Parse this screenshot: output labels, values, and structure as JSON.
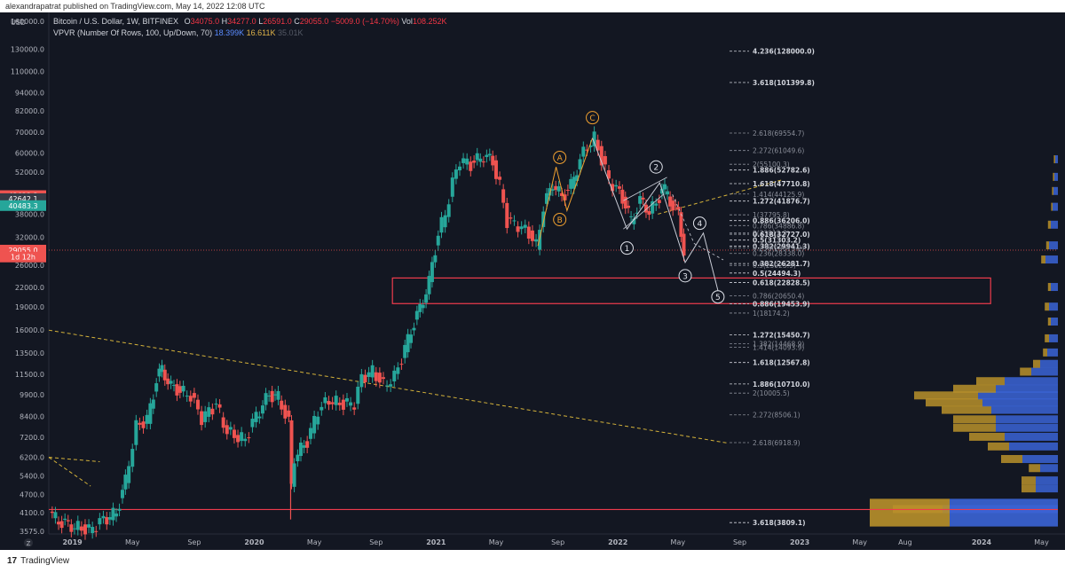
{
  "topbar": {
    "text": "alexandrapatrat published on TradingView.com, May 14, 2022 12:08 UTC"
  },
  "legend": {
    "symbol": "Bitcoin / U.S. Dollar, 1W, BITFINEX",
    "o_label": "O",
    "o": "34075.0",
    "h_label": "H",
    "h": "34277.0",
    "l_label": "L",
    "l": "26591.0",
    "c_label": "C",
    "c": "29055.0",
    "change": "−5009.0 (−14.70%)",
    "vol_label": "Vol",
    "vol": "108.252K",
    "indicator": "VPVR (Number Of Rows, 100, Up/Down, 70)",
    "ind_v1": "18.399K",
    "ind_v2": "16.611K",
    "ind_v3": "35.01K"
  },
  "footer": {
    "logo_text": "TradingView"
  },
  "axis": {
    "usd_label": "USD",
    "z_label": "Z"
  },
  "colors": {
    "bg": "#131722",
    "up": "#26a69a",
    "down": "#ef5350",
    "fib": "#d1d4dc",
    "fib_dim": "#8a8e99",
    "wave_orange": "#f0a030",
    "trend_yellow": "#d4b23a",
    "box": "#ef3b4c",
    "vp_up": "#3b64d6",
    "vp_down": "#b9902a"
  },
  "chart_data": {
    "type": "candlestick",
    "title": "Bitcoin / U.S. Dollar, 1W, BITFINEX",
    "y_scale": "log",
    "ylim": [
      3500,
      160000
    ],
    "y_ticks": [
      {
        "label": "160000.0",
        "v": 160000
      },
      {
        "label": "130000.0",
        "v": 130000
      },
      {
        "label": "110000.0",
        "v": 110000
      },
      {
        "label": "94000.0",
        "v": 94000
      },
      {
        "label": "82000.0",
        "v": 82000
      },
      {
        "label": "70000.0",
        "v": 70000
      },
      {
        "label": "60000.0",
        "v": 60000
      },
      {
        "label": "52000.0",
        "v": 52000
      },
      {
        "label": "38000.0",
        "v": 38000
      },
      {
        "label": "32000.0",
        "v": 32000
      },
      {
        "label": "26000.0",
        "v": 26000
      },
      {
        "label": "22000.0",
        "v": 22000
      },
      {
        "label": "19000.0",
        "v": 19000
      },
      {
        "label": "16000.0",
        "v": 16000
      },
      {
        "label": "13500.0",
        "v": 13500
      },
      {
        "label": "11500.0",
        "v": 11500
      },
      {
        "label": "9900.0",
        "v": 9900
      },
      {
        "label": "8400.0",
        "v": 8400
      },
      {
        "label": "7200.0",
        "v": 7200
      },
      {
        "label": "6200.0",
        "v": 6200
      },
      {
        "label": "5400.0",
        "v": 5400
      },
      {
        "label": "4700.0",
        "v": 4700
      },
      {
        "label": "4100.0",
        "v": 4100
      },
      {
        "label": "3575.0",
        "v": 3575
      }
    ],
    "price_badges": [
      {
        "label": "43623.3",
        "v": 43623,
        "color": "#ef5350"
      },
      {
        "label": "42642.1",
        "v": 42642,
        "color": "#363a45"
      },
      {
        "label": "40483.3",
        "v": 40483,
        "color": "#26a69a"
      },
      {
        "label": "29055.0",
        "v": 29055,
        "color": "#ef5350"
      },
      {
        "label": "1d 12h",
        "v": 27600,
        "color": "#ef5350"
      }
    ],
    "x_ticks": [
      {
        "label": "2019",
        "t": 2019.0,
        "bold": true
      },
      {
        "label": "May",
        "t": 2019.33
      },
      {
        "label": "Sep",
        "t": 2019.67
      },
      {
        "label": "2020",
        "t": 2020.0,
        "bold": true
      },
      {
        "label": "May",
        "t": 2020.33
      },
      {
        "label": "Sep",
        "t": 2020.67
      },
      {
        "label": "2021",
        "t": 2021.0,
        "bold": true
      },
      {
        "label": "May",
        "t": 2021.33
      },
      {
        "label": "Sep",
        "t": 2021.67
      },
      {
        "label": "2022",
        "t": 2022.0,
        "bold": true
      },
      {
        "label": "May",
        "t": 2022.33
      },
      {
        "label": "Sep",
        "t": 2022.67
      },
      {
        "label": "2023",
        "t": 2023.0,
        "bold": true
      },
      {
        "label": "May",
        "t": 2023.33
      },
      {
        "label": "Aug",
        "t": 2023.58
      },
      {
        "label": "2024",
        "t": 2024.0,
        "bold": true
      },
      {
        "label": "May",
        "t": 2024.33
      }
    ],
    "price_path": [
      [
        2018.88,
        4100
      ],
      [
        2018.95,
        3800
      ],
      [
        2019.02,
        3700
      ],
      [
        2019.1,
        3600
      ],
      [
        2019.18,
        3900
      ],
      [
        2019.25,
        4100
      ],
      [
        2019.3,
        5200
      ],
      [
        2019.36,
        7800
      ],
      [
        2019.42,
        8200
      ],
      [
        2019.47,
        11000
      ],
      [
        2019.5,
        12000
      ],
      [
        2019.55,
        10500
      ],
      [
        2019.6,
        10200
      ],
      [
        2019.66,
        9800
      ],
      [
        2019.72,
        8300
      ],
      [
        2019.8,
        9200
      ],
      [
        2019.86,
        7500
      ],
      [
        2019.92,
        7200
      ],
      [
        2019.96,
        7100
      ],
      [
        2020.02,
        8500
      ],
      [
        2020.09,
        9900
      ],
      [
        2020.14,
        9700
      ],
      [
        2020.2,
        8000
      ],
      [
        2020.21,
        5000
      ],
      [
        2020.23,
        6200
      ],
      [
        2020.3,
        7000
      ],
      [
        2020.36,
        8800
      ],
      [
        2020.42,
        9500
      ],
      [
        2020.5,
        9200
      ],
      [
        2020.56,
        9300
      ],
      [
        2020.6,
        11200
      ],
      [
        2020.66,
        11800
      ],
      [
        2020.72,
        10600
      ],
      [
        2020.78,
        11300
      ],
      [
        2020.82,
        13000
      ],
      [
        2020.87,
        16000
      ],
      [
        2020.92,
        18800
      ],
      [
        2020.97,
        23000
      ],
      [
        2021.02,
        33000
      ],
      [
        2021.06,
        38000
      ],
      [
        2021.1,
        48000
      ],
      [
        2021.14,
        57000
      ],
      [
        2021.2,
        55000
      ],
      [
        2021.27,
        59000
      ],
      [
        2021.32,
        56000
      ],
      [
        2021.36,
        47000
      ],
      [
        2021.4,
        36000
      ],
      [
        2021.46,
        35000
      ],
      [
        2021.52,
        33000
      ],
      [
        2021.56,
        30000
      ],
      [
        2021.6,
        40000
      ],
      [
        2021.65,
        48000
      ],
      [
        2021.7,
        43000
      ],
      [
        2021.75,
        47000
      ],
      [
        2021.8,
        57000
      ],
      [
        2021.84,
        63000
      ],
      [
        2021.88,
        67000
      ],
      [
        2021.92,
        57000
      ],
      [
        2021.96,
        49000
      ],
      [
        2022.0,
        46000
      ],
      [
        2022.05,
        41000
      ],
      [
        2022.08,
        36000
      ],
      [
        2022.13,
        42000
      ],
      [
        2022.18,
        39000
      ],
      [
        2022.22,
        41000
      ],
      [
        2022.25,
        46000
      ],
      [
        2022.28,
        44500
      ],
      [
        2022.31,
        40000
      ],
      [
        2022.34,
        38000
      ],
      [
        2022.37,
        29055
      ]
    ],
    "horizontal_line": {
      "v": 4200,
      "color": "#ef3b4c"
    },
    "support_box": {
      "v_top": 23600,
      "v_bottom": 19500,
      "t_start": 2020.76,
      "t_end": 2024.05
    },
    "fib_levels": [
      {
        "label": "4.236(128000.0)",
        "v": 128000,
        "bold": true
      },
      {
        "label": "3.618(101399.8)",
        "v": 101399,
        "bold": true
      },
      {
        "label": "2.618(69554.7)",
        "v": 69554
      },
      {
        "label": "2.272(61049.6)",
        "v": 61049
      },
      {
        "label": "2(55100.3)",
        "v": 55100
      },
      {
        "label": "1.886(52782.6)",
        "v": 52782,
        "bold": true
      },
      {
        "label": "1.618(47710.8)",
        "v": 47710,
        "bold": true
      },
      {
        "label": "1.414(44125.9)",
        "v": 44125
      },
      {
        "label": "1.272(41876.7)",
        "v": 41876,
        "bold": true
      },
      {
        "label": "1(37795.8)",
        "v": 37795
      },
      {
        "label": "0.786(34886.8)",
        "v": 34886
      },
      {
        "label": "0.886(36206.0)",
        "v": 36206,
        "bold": true
      },
      {
        "label": "0(33012.3)",
        "v": 33012
      },
      {
        "label": "0.618(32727.0)",
        "v": 32727,
        "bold": true
      },
      {
        "label": "0.5(31303.2)",
        "v": 31303,
        "bold": true
      },
      {
        "label": "0.382(29941.3)",
        "v": 29941,
        "bold": true
      },
      {
        "label": "0.236(28338.0)",
        "v": 28338
      },
      {
        "label": "0.236(29579.2)",
        "v": 29579
      },
      {
        "label": "0.382(26281.7)",
        "v": 26281,
        "bold": true
      },
      {
        "label": "0.5(25925.9)",
        "v": 25925
      },
      {
        "label": "0.5(24494.3)",
        "v": 24494,
        "bold": true
      },
      {
        "label": "0.618(22828.5)",
        "v": 22828,
        "bold": true
      },
      {
        "label": "0.786(20650.4)",
        "v": 20650
      },
      {
        "label": "0.886(19453.9)",
        "v": 19453,
        "bold": true
      },
      {
        "label": "1(18174.2)",
        "v": 18174
      },
      {
        "label": "1.272(15450.7)",
        "v": 15450,
        "bold": true
      },
      {
        "label": "1.382(14468.9)",
        "v": 14468
      },
      {
        "label": "1.414(14093.9)",
        "v": 14093
      },
      {
        "label": "1.618(12567.8)",
        "v": 12567,
        "bold": true
      },
      {
        "label": "1.886(10710.0)",
        "v": 10710,
        "bold": true
      },
      {
        "label": "2(10005.5)",
        "v": 10005
      },
      {
        "label": "2.272(8506.1)",
        "v": 8506
      },
      {
        "label": "2.618(6918.9)",
        "v": 6918
      },
      {
        "label": "3.618(3809.1)",
        "v": 3809,
        "bold": true
      }
    ],
    "waves": [
      {
        "label": "A",
        "t": 2021.68,
        "v": 58000,
        "color": "orange"
      },
      {
        "label": "B",
        "t": 2021.68,
        "v": 36500,
        "color": "orange"
      },
      {
        "label": "C",
        "t": 2021.86,
        "v": 78000,
        "color": "orange"
      },
      {
        "label": "1",
        "t": 2022.05,
        "v": 29500,
        "color": "white"
      },
      {
        "label": "2",
        "t": 2022.21,
        "v": 54000,
        "color": "white"
      },
      {
        "label": "3",
        "t": 2022.37,
        "v": 24000,
        "color": "white"
      },
      {
        "label": "4",
        "t": 2022.45,
        "v": 35500,
        "color": "white"
      },
      {
        "label": "5",
        "t": 2022.55,
        "v": 20500,
        "color": "white"
      }
    ],
    "volume_profile_legend": [
      "18.399K",
      "16.611K",
      "35.01K"
    ]
  }
}
